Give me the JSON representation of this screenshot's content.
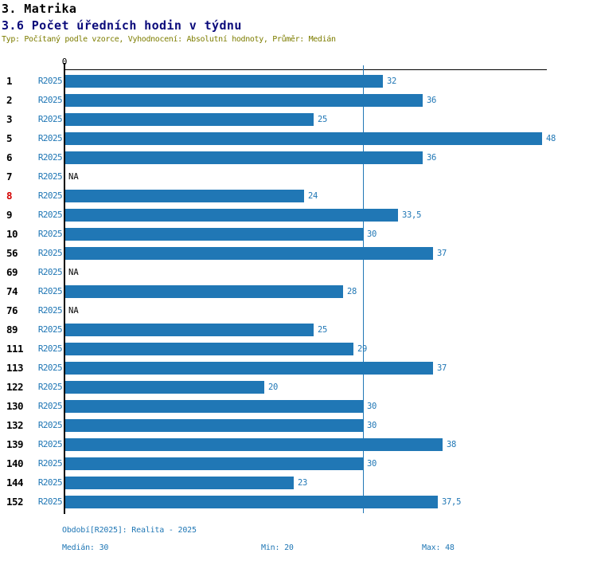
{
  "header": {
    "title": "3. Matrika",
    "subtitle": "3.6 Počet úředních hodin v týdnu",
    "meta_line": "Typ: Počítaný podle vzorce, Vyhodnocení: Absolutní hodnoty, Průměr: Medián"
  },
  "chart_data": {
    "type": "bar",
    "orientation": "horizontal",
    "title": "3.6 Počet úředních hodin v týdnu",
    "x_axis": {
      "zero_label": "0",
      "min": 0,
      "max": 48,
      "gridlines": false
    },
    "series_label": "R2025",
    "categories": [
      "1",
      "2",
      "3",
      "5",
      "6",
      "7",
      "8",
      "9",
      "10",
      "56",
      "69",
      "74",
      "76",
      "89",
      "111",
      "113",
      "122",
      "130",
      "132",
      "139",
      "140",
      "144",
      "152"
    ],
    "values": [
      32,
      36,
      25,
      48,
      36,
      null,
      24,
      33.5,
      30,
      37,
      null,
      28,
      null,
      25,
      29,
      37,
      20,
      30,
      30,
      38,
      30,
      23,
      37.5
    ],
    "value_labels": [
      "32",
      "36",
      "25",
      "48",
      "36",
      "NA",
      "24",
      "33,5",
      "30",
      "37",
      "NA",
      "28",
      "NA",
      "25",
      "29",
      "37",
      "20",
      "30",
      "30",
      "38",
      "30",
      "23",
      "37,5"
    ],
    "na_label": "NA",
    "highlighted_category": "8",
    "median_line_value": 30,
    "legend_position": "none",
    "colors": {
      "bar": "#2077b5",
      "median_line": "#2077b5",
      "value_label": "#2077b5",
      "series_label": "#2077b5",
      "row_id": "#000000",
      "highlighted_row_id": "#d40000",
      "subtitle": "#0b0b7b",
      "meta_text": "#7d7d00",
      "footer_text": "#2077b5"
    }
  },
  "footer": {
    "period_line": "Období[R2025]: Realita - 2025",
    "median_label": "Medián: 30",
    "min_label": "Min: 20",
    "max_label": "Max: 48"
  }
}
